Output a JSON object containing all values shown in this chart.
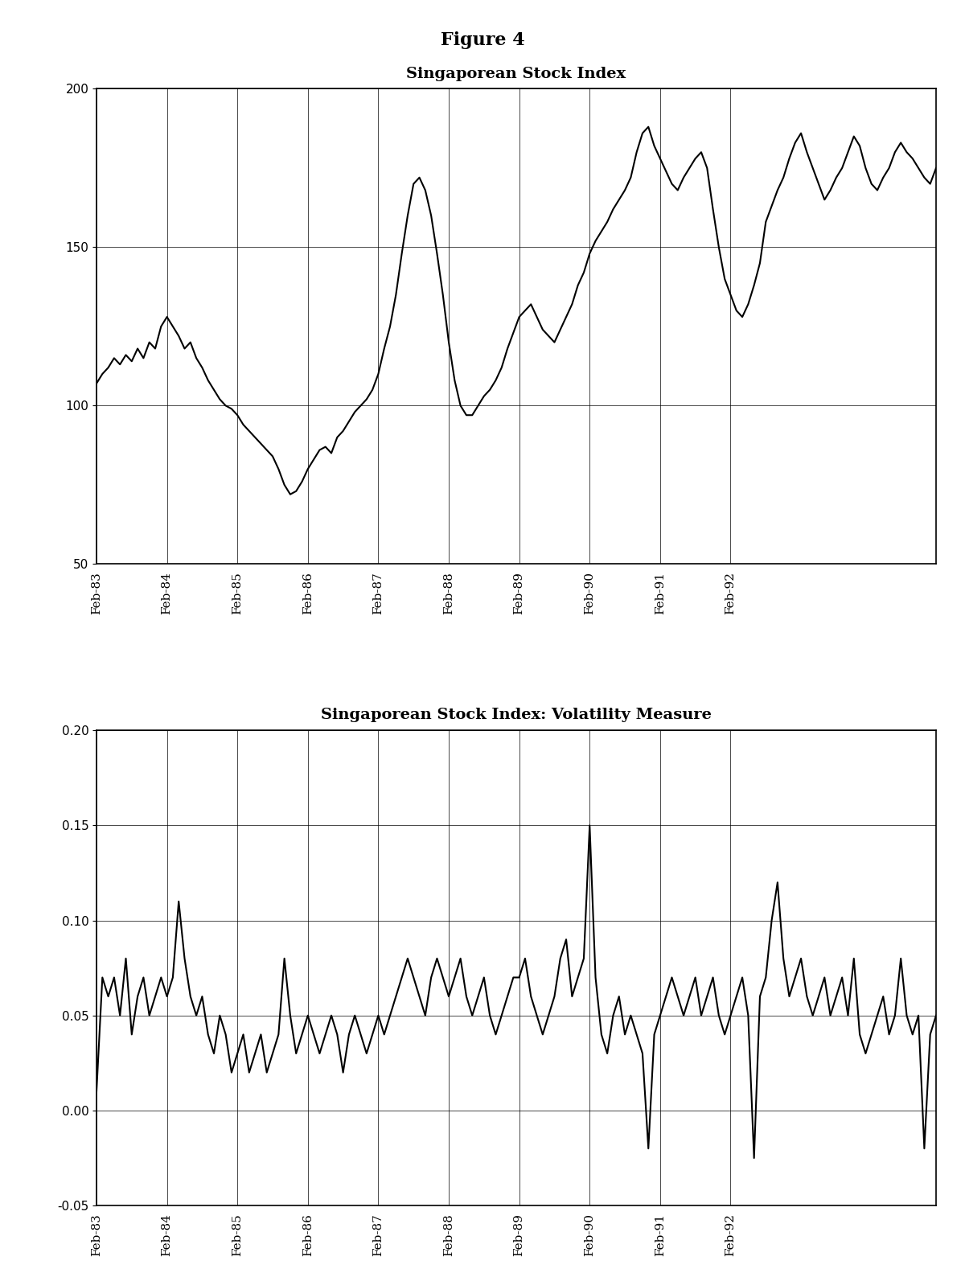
{
  "figure_title": "Figure 4",
  "plot1_title": "Singaporean Stock Index",
  "plot2_title": "Singaporean Stock Index: Volatility Measure",
  "background_color": "#ffffff",
  "line_color": "#000000",
  "plot1_ylim": [
    50,
    200
  ],
  "plot1_yticks": [
    50,
    100,
    150,
    200
  ],
  "plot2_ylim": [
    -0.05,
    0.2
  ],
  "plot2_yticks": [
    -0.05,
    0.0,
    0.05,
    0.1,
    0.15,
    0.2
  ],
  "index_data": [
    107,
    110,
    112,
    115,
    113,
    116,
    114,
    118,
    115,
    120,
    118,
    125,
    128,
    125,
    122,
    118,
    120,
    115,
    112,
    108,
    105,
    102,
    100,
    99,
    97,
    94,
    92,
    90,
    88,
    86,
    84,
    80,
    75,
    72,
    73,
    76,
    80,
    83,
    86,
    87,
    85,
    90,
    92,
    95,
    98,
    100,
    102,
    105,
    110,
    118,
    125,
    135,
    148,
    160,
    170,
    172,
    168,
    160,
    148,
    135,
    120,
    108,
    100,
    97,
    97,
    100,
    103,
    105,
    108,
    112,
    118,
    123,
    128,
    130,
    132,
    128,
    124,
    122,
    120,
    124,
    128,
    132,
    138,
    142,
    148,
    152,
    155,
    158,
    162,
    165,
    168,
    172,
    180,
    186,
    188,
    182,
    178,
    174,
    170,
    168,
    172,
    175,
    178,
    180,
    175,
    162,
    150,
    140,
    135,
    130,
    128,
    132,
    138,
    145,
    158,
    163,
    168,
    172,
    178,
    183,
    186,
    180,
    175,
    170,
    165,
    168,
    172,
    175,
    180,
    185,
    182,
    175,
    170,
    168,
    172,
    175,
    180,
    183,
    180,
    178,
    175,
    172,
    170,
    175
  ],
  "vol_data": [
    0.01,
    0.07,
    0.06,
    0.07,
    0.05,
    0.08,
    0.04,
    0.06,
    0.07,
    0.05,
    0.06,
    0.07,
    0.06,
    0.07,
    0.11,
    0.08,
    0.06,
    0.05,
    0.06,
    0.04,
    0.03,
    0.05,
    0.04,
    0.02,
    0.03,
    0.04,
    0.02,
    0.03,
    0.04,
    0.02,
    0.03,
    0.04,
    0.08,
    0.05,
    0.03,
    0.04,
    0.05,
    0.04,
    0.03,
    0.04,
    0.05,
    0.04,
    0.02,
    0.04,
    0.05,
    0.04,
    0.03,
    0.04,
    0.05,
    0.04,
    0.05,
    0.06,
    0.07,
    0.08,
    0.07,
    0.06,
    0.05,
    0.07,
    0.08,
    0.07,
    0.06,
    0.07,
    0.08,
    0.06,
    0.05,
    0.06,
    0.07,
    0.05,
    0.04,
    0.05,
    0.06,
    0.07,
    0.07,
    0.08,
    0.06,
    0.05,
    0.04,
    0.05,
    0.06,
    0.08,
    0.09,
    0.06,
    0.07,
    0.08,
    0.15,
    0.07,
    0.04,
    0.03,
    0.05,
    0.06,
    0.04,
    0.05,
    0.04,
    0.03,
    -0.02,
    0.04,
    0.05,
    0.06,
    0.07,
    0.06,
    0.05,
    0.06,
    0.07,
    0.05,
    0.06,
    0.07,
    0.05,
    0.04,
    0.05,
    0.06,
    0.07,
    0.05,
    -0.025,
    0.06,
    0.07,
    0.1,
    0.12,
    0.08,
    0.06,
    0.07,
    0.08,
    0.06,
    0.05,
    0.06,
    0.07,
    0.05,
    0.06,
    0.07,
    0.05,
    0.08,
    0.04,
    0.03,
    0.04,
    0.05,
    0.06,
    0.04,
    0.05,
    0.08,
    0.05,
    0.04,
    0.05,
    -0.02,
    0.04,
    0.05
  ],
  "x_tick_labels": [
    "Feb-83",
    "Feb-84",
    "Feb-85",
    "Feb-86",
    "Feb-87",
    "Feb-88",
    "Feb-89",
    "Feb-90",
    "Feb-91",
    "Feb-92"
  ],
  "x_tick_positions": [
    0,
    12,
    24,
    36,
    48,
    60,
    72,
    84,
    96,
    108
  ]
}
